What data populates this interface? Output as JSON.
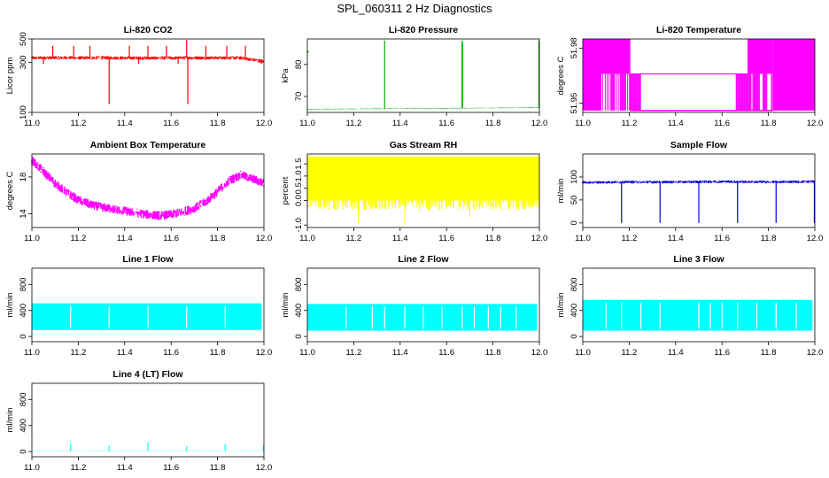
{
  "page": {
    "title": "SPL_060311  2 Hz Diagnostics"
  },
  "chart_data": [
    {
      "id": "co2",
      "type": "line",
      "title": "Li-820 CO2",
      "xlabel": "",
      "ylabel": "Licor ppm",
      "xlim": [
        11.0,
        12.0
      ],
      "ylim": [
        100,
        500
      ],
      "ylog": true,
      "xticks": [
        "11.0",
        "11.2",
        "11.4",
        "11.6",
        "11.8",
        "12.0"
      ],
      "yticks": [
        100,
        300,
        500
      ],
      "color": "#ff0000",
      "series": [
        {
          "values": [
            {
              "x": 11.0,
              "y": 330
            },
            {
              "x": 11.1,
              "y": 332
            },
            {
              "x": 11.2,
              "y": 330
            },
            {
              "x": 11.3,
              "y": 331
            },
            {
              "x": 11.4,
              "y": 330
            },
            {
              "x": 11.5,
              "y": 329
            },
            {
              "x": 11.6,
              "y": 330
            },
            {
              "x": 11.7,
              "y": 331
            },
            {
              "x": 11.8,
              "y": 330
            },
            {
              "x": 11.9,
              "y": 330
            },
            {
              "x": 12.0,
              "y": 305
            }
          ]
        }
      ],
      "noise": 25,
      "spikes": [
        {
          "x": 11.333,
          "y": 120
        },
        {
          "x": 11.667,
          "y": 520
        },
        {
          "x": 11.672,
          "y": 120
        },
        {
          "x": 11.09,
          "y": 430
        },
        {
          "x": 11.18,
          "y": 430
        },
        {
          "x": 11.25,
          "y": 430
        },
        {
          "x": 11.42,
          "y": 430
        },
        {
          "x": 11.5,
          "y": 430
        },
        {
          "x": 11.58,
          "y": 430
        },
        {
          "x": 11.75,
          "y": 430
        },
        {
          "x": 11.84,
          "y": 430
        },
        {
          "x": 11.92,
          "y": 430
        },
        {
          "x": 11.05,
          "y": 290
        },
        {
          "x": 11.46,
          "y": 290
        },
        {
          "x": 11.63,
          "y": 290
        },
        {
          "x": 11.99,
          "y": 290
        }
      ]
    },
    {
      "id": "pressure",
      "type": "line",
      "title": "Li-820 Pressure",
      "xlabel": "",
      "ylabel": "kPa",
      "xlim": [
        11.0,
        12.0
      ],
      "ylim": [
        65,
        88
      ],
      "xticks": [
        "11.0",
        "11.2",
        "11.4",
        "11.6",
        "11.8",
        "12.0"
      ],
      "yticks": [
        70,
        80
      ],
      "color": "#00b000",
      "series": [
        {
          "values": [
            {
              "x": 11.0,
              "y": 66.0
            },
            {
              "x": 11.2,
              "y": 66.1
            },
            {
              "x": 11.4,
              "y": 66.2
            },
            {
              "x": 11.6,
              "y": 66.3
            },
            {
              "x": 11.8,
              "y": 66.4
            },
            {
              "x": 12.0,
              "y": 66.5
            }
          ]
        }
      ],
      "noise": 0.2,
      "spikes": [
        {
          "x": 11.333,
          "y": 87.5
        },
        {
          "x": 11.667,
          "y": 87.5
        },
        {
          "x": 11.669,
          "y": 87.0
        },
        {
          "x": 11.998,
          "y": 87.5
        }
      ],
      "points": [
        {
          "x": 11.0,
          "y": 84
        }
      ]
    },
    {
      "id": "temp820",
      "type": "area",
      "title": "Li-820 Temperature",
      "xlabel": "",
      "ylabel": "degrees C",
      "xlim": [
        11.0,
        12.0
      ],
      "ylim": [
        51.945,
        51.985
      ],
      "xticks": [
        "11.0",
        "11.2",
        "11.4",
        "11.6",
        "11.8",
        "12.0"
      ],
      "yticks": [
        51.95,
        51.98
      ],
      "ytick_labels": [
        "51.95",
        "51.98"
      ],
      "color": "#ff00ff",
      "upper": [
        {
          "x": 11.0,
          "y": 51.985
        },
        {
          "x": 11.2,
          "y": 51.985
        },
        {
          "x": 11.205,
          "y": 51.966
        },
        {
          "x": 11.71,
          "y": 51.966
        },
        {
          "x": 11.715,
          "y": 51.985
        },
        {
          "x": 12.0,
          "y": 51.985
        }
      ],
      "lower": [
        {
          "x": 11.0,
          "y": 51.966
        },
        {
          "x": 11.08,
          "y": 51.966
        },
        {
          "x": 11.085,
          "y": 51.946
        },
        {
          "x": 11.82,
          "y": 51.946
        },
        {
          "x": 11.825,
          "y": 51.966
        },
        {
          "x": 12.0,
          "y": 51.966
        }
      ],
      "bands": [
        {
          "x0": 11.0,
          "x1": 11.08,
          "y0": 51.946,
          "y1": 51.985
        },
        {
          "x0": 11.82,
          "x1": 12.0,
          "y0": 51.946,
          "y1": 51.985
        }
      ]
    },
    {
      "id": "ambient",
      "type": "line",
      "title": "Ambient Box Temperature",
      "xlabel": "",
      "ylabel": "degrees C",
      "xlim": [
        11.0,
        12.0
      ],
      "ylim": [
        12.5,
        20.5
      ],
      "xticks": [
        "11.0",
        "11.2",
        "11.4",
        "11.6",
        "11.8",
        "12.0"
      ],
      "yticks": [
        14,
        18
      ],
      "color": "#ff00ff",
      "series": [
        {
          "values": [
            {
              "x": 11.0,
              "y": 19.8
            },
            {
              "x": 11.05,
              "y": 18.6
            },
            {
              "x": 11.1,
              "y": 17.3
            },
            {
              "x": 11.15,
              "y": 16.3
            },
            {
              "x": 11.2,
              "y": 15.5
            },
            {
              "x": 11.25,
              "y": 15.0
            },
            {
              "x": 11.3,
              "y": 14.7
            },
            {
              "x": 11.35,
              "y": 14.5
            },
            {
              "x": 11.4,
              "y": 14.3
            },
            {
              "x": 11.45,
              "y": 14.1
            },
            {
              "x": 11.5,
              "y": 13.9
            },
            {
              "x": 11.55,
              "y": 13.8
            },
            {
              "x": 11.6,
              "y": 13.9
            },
            {
              "x": 11.65,
              "y": 14.2
            },
            {
              "x": 11.7,
              "y": 14.6
            },
            {
              "x": 11.75,
              "y": 15.3
            },
            {
              "x": 11.8,
              "y": 16.4
            },
            {
              "x": 11.85,
              "y": 17.6
            },
            {
              "x": 11.9,
              "y": 18.2
            },
            {
              "x": 11.95,
              "y": 17.8
            },
            {
              "x": 12.0,
              "y": 17.3
            }
          ]
        }
      ],
      "noise": 1.0
    },
    {
      "id": "rh",
      "type": "line",
      "title": "Gas Stream RH",
      "xlabel": "",
      "ylabel": "percent",
      "xlim": [
        11.0,
        12.0
      ],
      "ylim": [
        -1.1,
        1.9
      ],
      "xticks": [
        "11.0",
        "11.2",
        "11.4",
        "11.6",
        "11.8",
        "12.0"
      ],
      "yticks": [
        -1.0,
        0.0,
        0.5,
        1.0,
        1.5
      ],
      "ytick_labels": [
        "-1.0",
        "0.0",
        "0.5",
        "1.0",
        "1.5"
      ],
      "color": "#ffff00",
      "band": {
        "x0": 11.0,
        "x1": 12.0,
        "y0": 0.0,
        "y1": 1.8
      },
      "dips": 60,
      "dip_min": -0.4,
      "deep_dips": [
        {
          "x": 11.42,
          "y": -1.0
        },
        {
          "x": 11.22,
          "y": -0.9
        },
        {
          "x": 11.7,
          "y": -0.7
        }
      ]
    },
    {
      "id": "sample",
      "type": "line",
      "title": "Sample Flow",
      "xlabel": "",
      "ylabel": "ml/min",
      "xlim": [
        11.0,
        12.0
      ],
      "ylim": [
        -10,
        150
      ],
      "xticks": [
        "11.0",
        "11.2",
        "11.4",
        "11.6",
        "11.8",
        "12.0"
      ],
      "yticks": [
        0,
        50,
        100
      ],
      "color": "#0000dd",
      "series": [
        {
          "values": [
            {
              "x": 11.0,
              "y": 88
            },
            {
              "x": 11.2,
              "y": 89
            },
            {
              "x": 11.4,
              "y": 89
            },
            {
              "x": 11.6,
              "y": 90
            },
            {
              "x": 11.8,
              "y": 89
            },
            {
              "x": 12.0,
              "y": 90
            }
          ]
        }
      ],
      "noise": 6,
      "spikes": [
        {
          "x": 11.167,
          "y": 0
        },
        {
          "x": 11.333,
          "y": 0
        },
        {
          "x": 11.5,
          "y": 0
        },
        {
          "x": 11.667,
          "y": 0
        },
        {
          "x": 11.833,
          "y": 0
        },
        {
          "x": 11.998,
          "y": 0
        }
      ]
    },
    {
      "id": "line1",
      "type": "area",
      "title": "Line 1 Flow",
      "xlabel": "",
      "ylabel": "ml/min",
      "xlim": [
        11.0,
        12.0
      ],
      "ylim": [
        -80,
        1050
      ],
      "xticks": [
        "11.0",
        "11.2",
        "11.4",
        "11.6",
        "11.8",
        "12.0"
      ],
      "yticks": [
        0,
        400,
        800
      ],
      "color": "#00ffff",
      "band": {
        "x0": 11.0,
        "x1": 11.99,
        "y0": 100,
        "y1": 510
      },
      "gaps": [
        11.167,
        11.333,
        11.5,
        11.667,
        11.833
      ]
    },
    {
      "id": "line2",
      "type": "area",
      "title": "Line 2 Flow",
      "xlabel": "",
      "ylabel": "ml/min",
      "xlim": [
        11.0,
        12.0
      ],
      "ylim": [
        -80,
        1050
      ],
      "xticks": [
        "11.0",
        "11.2",
        "11.4",
        "11.6",
        "11.8",
        "12.0"
      ],
      "yticks": [
        0,
        400,
        800
      ],
      "color": "#00ffff",
      "band": {
        "x0": 11.0,
        "x1": 11.99,
        "y0": 90,
        "y1": 500
      },
      "gaps": [
        11.167,
        11.28,
        11.333,
        11.42,
        11.5,
        11.58,
        11.667,
        11.72,
        11.78,
        11.833,
        11.9
      ]
    },
    {
      "id": "line3",
      "type": "area",
      "title": "Line 3 Flow",
      "xlabel": "",
      "ylabel": "ml/min",
      "xlim": [
        11.0,
        12.0
      ],
      "ylim": [
        -80,
        1050
      ],
      "xticks": [
        "11.0",
        "11.2",
        "11.4",
        "11.6",
        "11.8",
        "12.0"
      ],
      "yticks": [
        0,
        400,
        800
      ],
      "color": "#00ffff",
      "band": {
        "x0": 11.0,
        "x1": 11.99,
        "y0": 90,
        "y1": 560
      },
      "gaps": [
        11.1,
        11.167,
        11.25,
        11.333,
        11.5,
        11.55,
        11.6,
        11.667,
        11.75,
        11.833,
        11.92
      ]
    },
    {
      "id": "line4",
      "type": "line",
      "title": "Line 4 (LT) Flow",
      "xlabel": "",
      "ylabel": "ml/min",
      "xlim": [
        11.0,
        12.0
      ],
      "ylim": [
        -80,
        1050
      ],
      "xticks": [
        "11.0",
        "11.2",
        "11.4",
        "11.6",
        "11.8",
        "12.0"
      ],
      "yticks": [
        0,
        400,
        800
      ],
      "color": "#00ffff",
      "series": [
        {
          "values": [
            {
              "x": 11.0,
              "y": 8
            },
            {
              "x": 12.0,
              "y": 8
            }
          ]
        }
      ],
      "noise": 4,
      "spikes": [
        {
          "x": 11.167,
          "y": 120
        },
        {
          "x": 11.333,
          "y": 90
        },
        {
          "x": 11.5,
          "y": 140
        },
        {
          "x": 11.667,
          "y": 80
        },
        {
          "x": 11.833,
          "y": 110
        },
        {
          "x": 11.998,
          "y": 100
        }
      ]
    }
  ]
}
